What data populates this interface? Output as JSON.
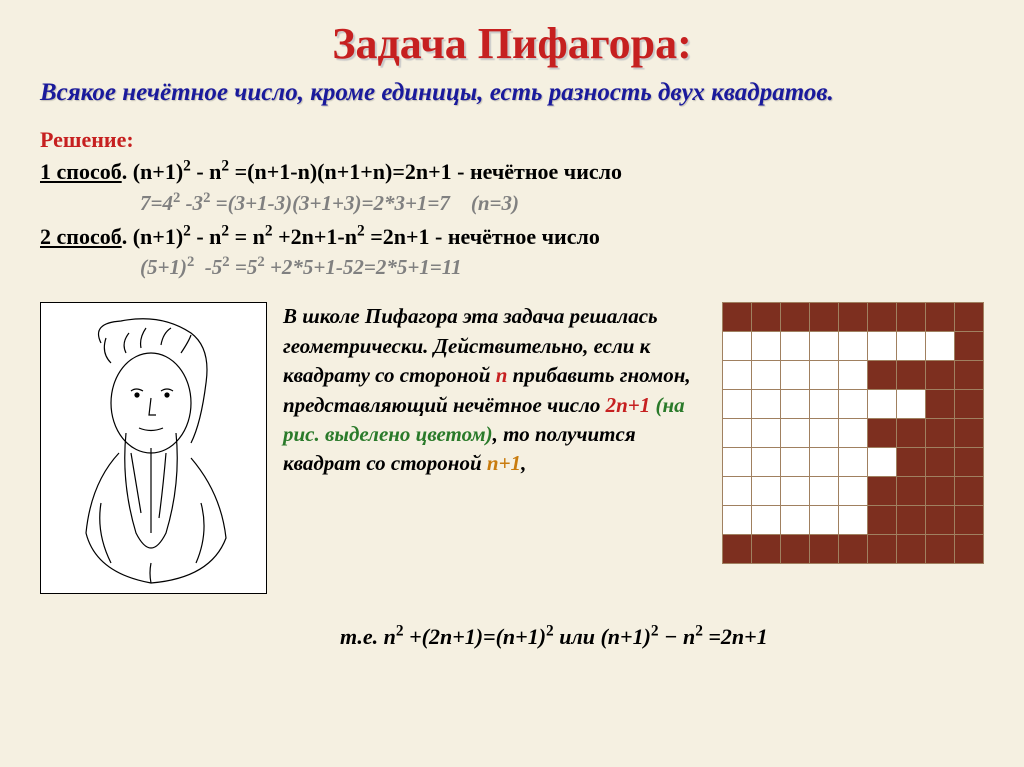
{
  "title": "Задача Пифагора:",
  "subtitle": "Всякое нечётное число, кроме единицы, есть разность двух квадратов.",
  "solution_header": "Решение:",
  "method1": {
    "label": "1 способ",
    "formula": ". (n+1)² - n² =(n+1-n)(n+1+n)=2n+1 - нечётное число",
    "example": "7=4² -3² =(3+1-3)(3+1+3)=2*3+1=7    (n=3)"
  },
  "method2": {
    "label": "2 способ",
    "formula": ". (n+1)² - n² = n² +2n+1-n² =2n+1 - нечётное число",
    "example": "(5+1)²  -5² =5² +2*5+1-52=2*5+1=11"
  },
  "description": {
    "part1": "В школе Пифагора эта задача решалась геометрически. Действительно, если к квадрату со стороной ",
    "n": "n",
    "part2": " прибавить гномон, представляющий нечётное число ",
    "expr": "2n+1",
    "paren": " (на рис. выделено цветом)",
    "part3": ", то получится квадрат со стороной ",
    "np1": "n+1",
    "comma": ","
  },
  "final": {
    "prefix": "т.е. ",
    "formula": "n² +(2n+1)=(n+1)² или (n+1)² − n² =2n+1"
  },
  "grid": {
    "rows": 9,
    "cols": 9,
    "filled_color": "#7d2f1f",
    "empty_color": "#ffffff",
    "border_color": "#a08060",
    "cell_size": 29,
    "pattern": [
      [
        1,
        1,
        1,
        1,
        1,
        1,
        1,
        1,
        1
      ],
      [
        0,
        0,
        0,
        0,
        0,
        0,
        0,
        0,
        1
      ],
      [
        0,
        0,
        0,
        0,
        0,
        1,
        1,
        1,
        1
      ],
      [
        0,
        0,
        0,
        0,
        0,
        0,
        0,
        1,
        1
      ],
      [
        0,
        0,
        0,
        0,
        0,
        1,
        1,
        1,
        1
      ],
      [
        0,
        0,
        0,
        0,
        0,
        0,
        1,
        1,
        1
      ],
      [
        0,
        0,
        0,
        0,
        0,
        1,
        1,
        1,
        1
      ],
      [
        0,
        0,
        0,
        0,
        0,
        1,
        1,
        1,
        1
      ],
      [
        1,
        1,
        1,
        1,
        1,
        1,
        1,
        1,
        1
      ]
    ]
  },
  "colors": {
    "background": "#f5f0e1",
    "title": "#c62020",
    "subtitle": "#1a1a9c",
    "gray": "#808080",
    "green": "#2a7a2a",
    "orange": "#c97c0e"
  }
}
